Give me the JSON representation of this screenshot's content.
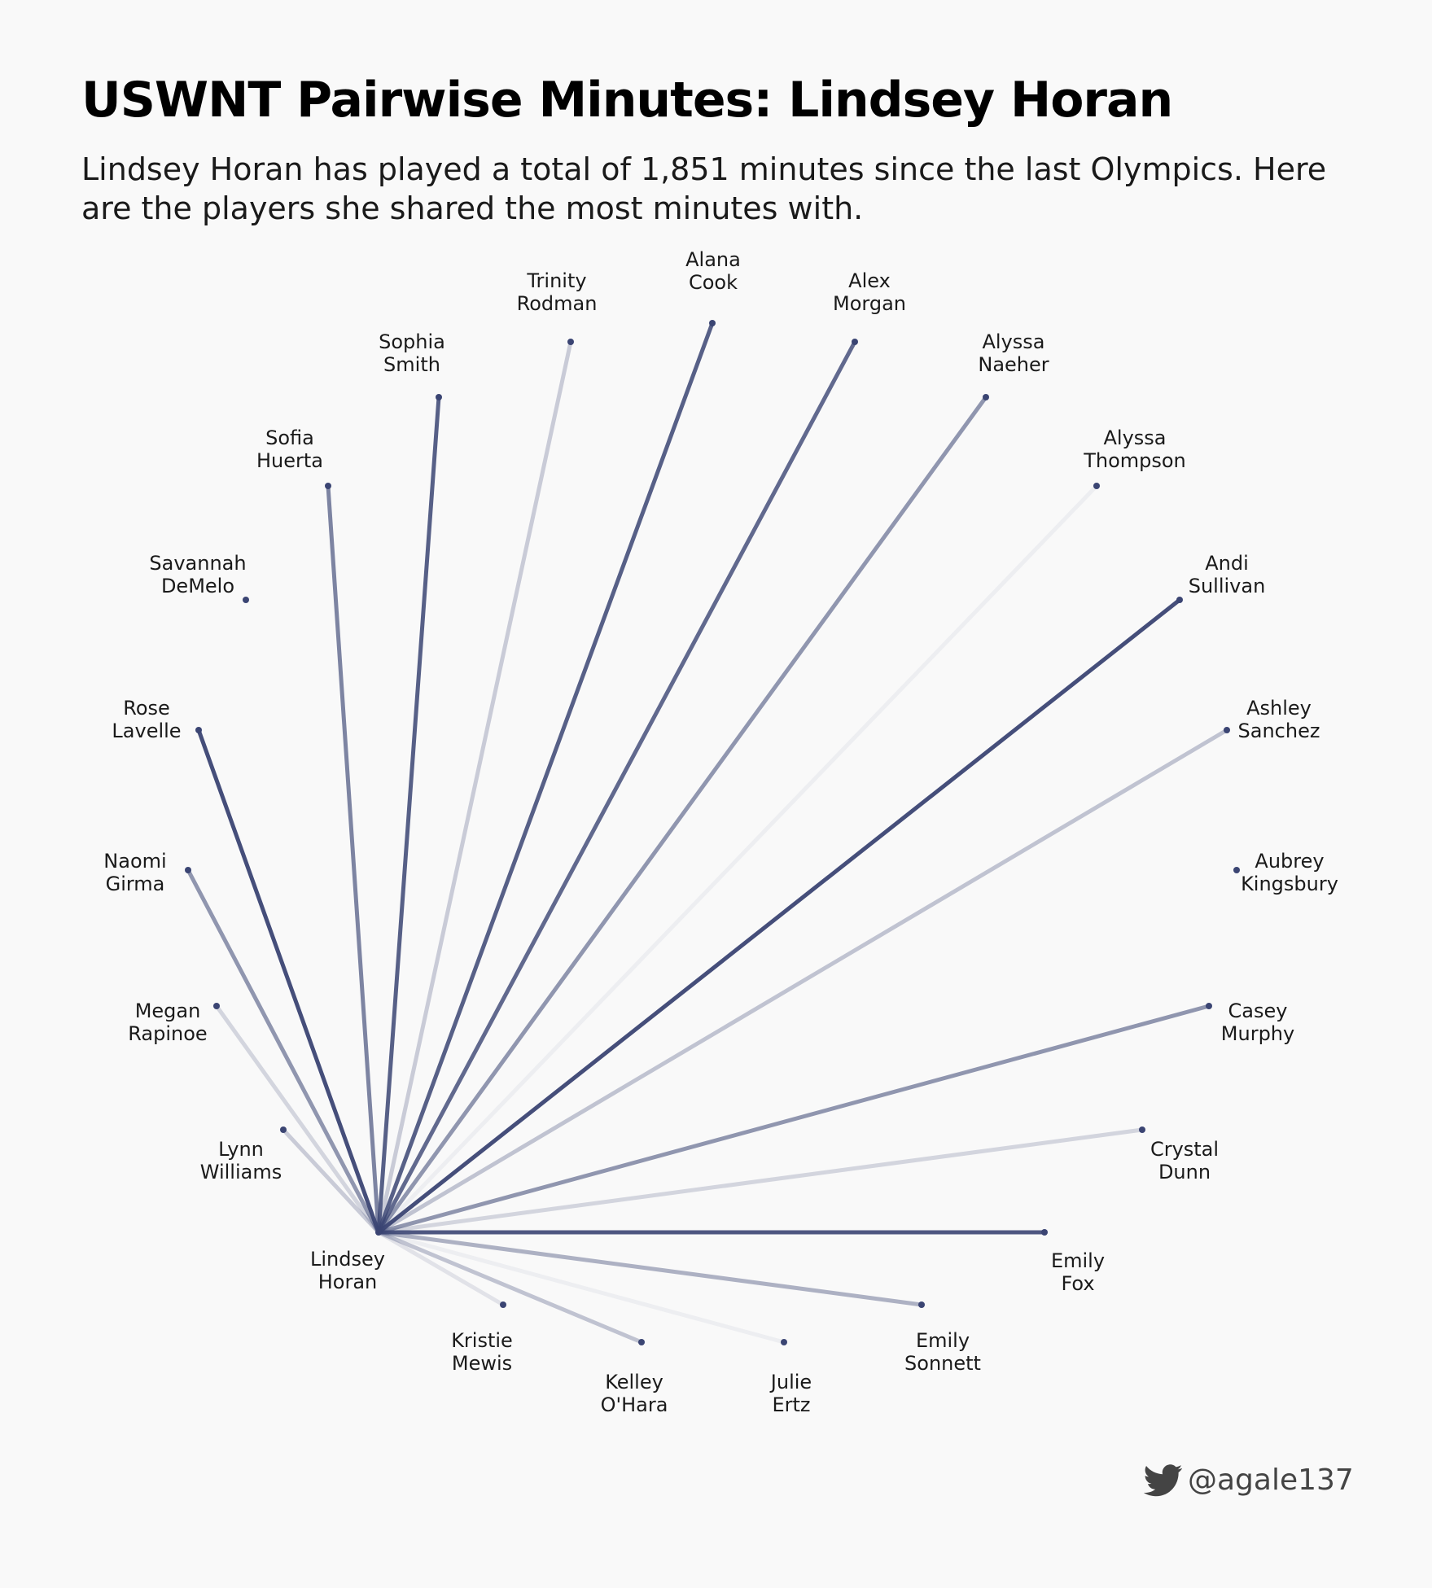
{
  "header": {
    "title": "USWNT Pairwise Minutes: Lindsey Horan",
    "subtitle": "Lindsey Horan has played a total of 1,851 minutes since the last Olympics. Here are the players she shared the most minutes with."
  },
  "credit": {
    "handle": "@agale137",
    "icon": "twitter-bird-icon"
  },
  "colors": {
    "line": "#3b4573",
    "point": "#3b4573",
    "background": "#f9f9f9"
  },
  "chart_data": {
    "type": "network",
    "center": {
      "name": "Lindsey Horan",
      "line1": "Lindsey",
      "line2": "Horan"
    },
    "players": [
      {
        "name": "Lynn Williams",
        "line1": "Lynn",
        "line2": "Williams",
        "intensity": 0.25
      },
      {
        "name": "Megan Rapinoe",
        "line1": "Megan",
        "line2": "Rapinoe",
        "intensity": 0.2
      },
      {
        "name": "Naomi Girma",
        "line1": "Naomi",
        "line2": "Girma",
        "intensity": 0.55
      },
      {
        "name": "Rose Lavelle",
        "line1": "Rose",
        "line2": "Lavelle",
        "intensity": 0.95
      },
      {
        "name": "Savannah DeMelo",
        "line1": "Savannah",
        "line2": "DeMelo",
        "intensity": 0.0
      },
      {
        "name": "Sofia Huerta",
        "line1": "Sofia",
        "line2": "Huerta",
        "intensity": 0.65
      },
      {
        "name": "Sophia Smith",
        "line1": "Sophia",
        "line2": "Smith",
        "intensity": 0.85
      },
      {
        "name": "Trinity Rodman",
        "line1": "Trinity",
        "line2": "Rodman",
        "intensity": 0.25
      },
      {
        "name": "Alana Cook",
        "line1": "Alana",
        "line2": "Cook",
        "intensity": 0.85
      },
      {
        "name": "Alex Morgan",
        "line1": "Alex",
        "line2": "Morgan",
        "intensity": 0.8
      },
      {
        "name": "Alyssa Naeher",
        "line1": "Alyssa",
        "line2": "Naeher",
        "intensity": 0.55
      },
      {
        "name": "Alyssa Thompson",
        "line1": "Alyssa",
        "line2": "Thompson",
        "intensity": 0.05
      },
      {
        "name": "Andi Sullivan",
        "line1": "Andi",
        "line2": "Sullivan",
        "intensity": 0.95
      },
      {
        "name": "Ashley Sanchez",
        "line1": "Ashley",
        "line2": "Sanchez",
        "intensity": 0.3
      },
      {
        "name": "Aubrey Kingsbury",
        "line1": "Aubrey",
        "line2": "Kingsbury",
        "intensity": 0.0
      },
      {
        "name": "Casey Murphy",
        "line1": "Casey",
        "line2": "Murphy",
        "intensity": 0.55
      },
      {
        "name": "Crystal Dunn",
        "line1": "Crystal",
        "line2": "Dunn",
        "intensity": 0.2
      },
      {
        "name": "Emily Fox",
        "line1": "Emily",
        "line2": "Fox",
        "intensity": 0.9
      },
      {
        "name": "Emily Sonnett",
        "line1": "Emily",
        "line2": "Sonnett",
        "intensity": 0.4
      },
      {
        "name": "Julie Ertz",
        "line1": "Julie",
        "line2": "Ertz",
        "intensity": 0.05
      },
      {
        "name": "Kelley O'Hara",
        "line1": "Kelley",
        "line2": "O'Hara",
        "intensity": 0.3
      },
      {
        "name": "Kristie Mewis",
        "line1": "Kristie",
        "line2": "Mewis",
        "intensity": 0.12
      }
    ]
  }
}
